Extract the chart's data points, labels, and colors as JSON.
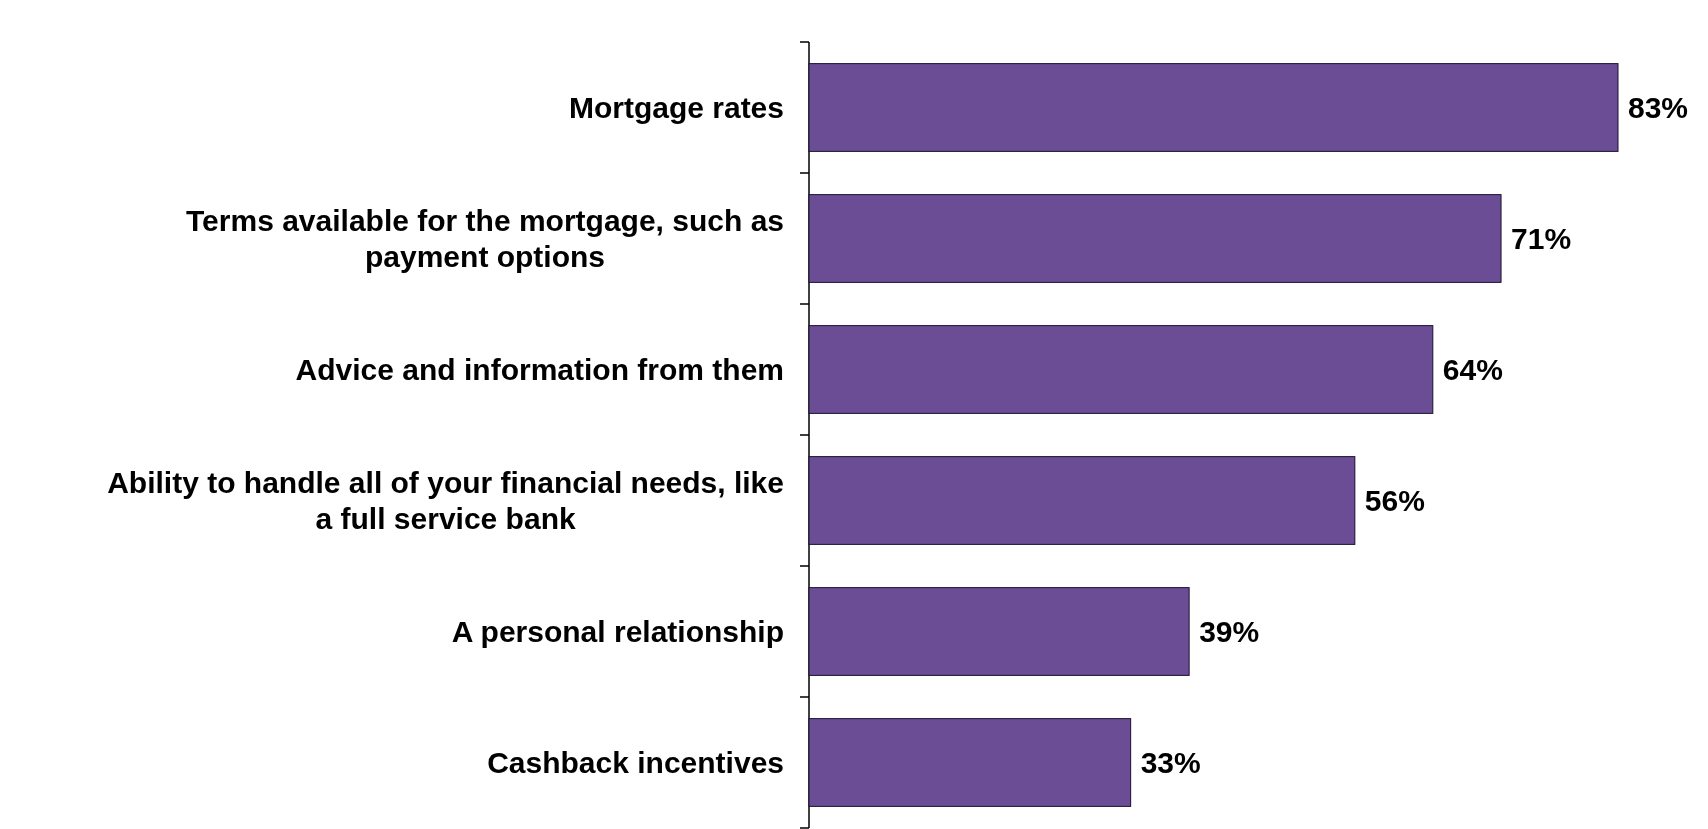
{
  "chart_data": {
    "type": "bar",
    "orientation": "horizontal",
    "categories": [
      "Mortgage rates",
      "Terms available for the mortgage, such as payment options",
      "Advice and information from them",
      "Ability to handle all of your financial needs, like a full service bank",
      "A personal relationship",
      "Cashback incentives"
    ],
    "values": [
      83,
      71,
      64,
      56,
      39,
      33
    ],
    "value_labels": [
      "83%",
      "71%",
      "64%",
      "56%",
      "39%",
      "33%"
    ],
    "color": "#6a4d94"
  }
}
